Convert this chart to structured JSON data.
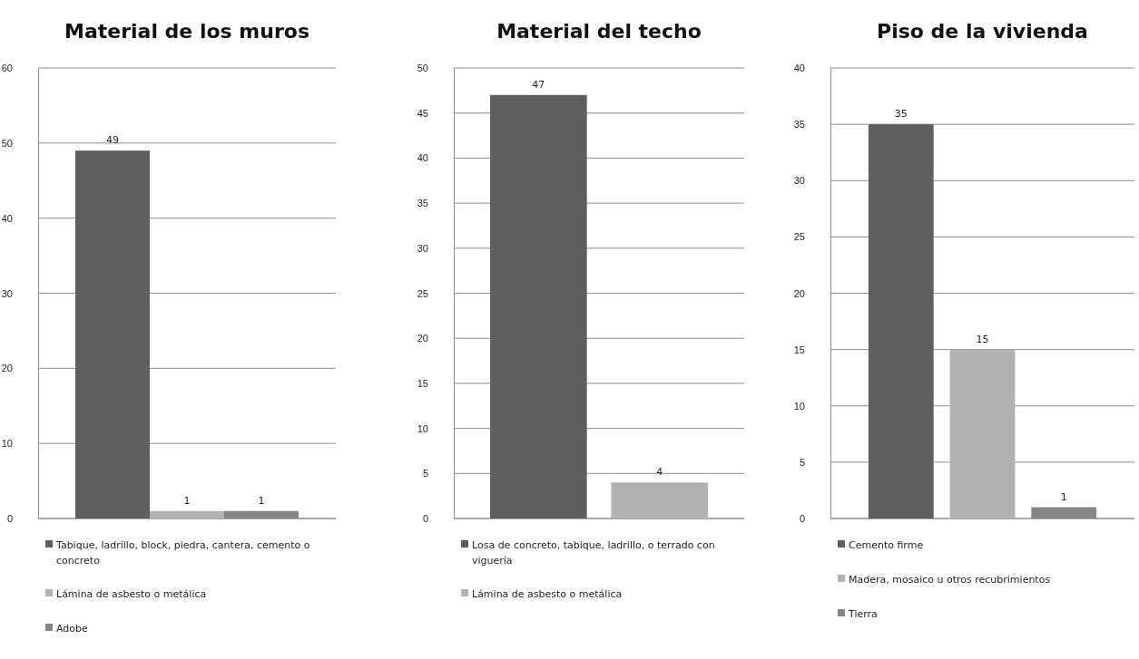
{
  "chart_data": [
    {
      "type": "bar",
      "title": "Material de los muros",
      "categories": [
        null
      ],
      "series": [
        {
          "name": "Tabique, ladrillo, block, piedra, cantera, cemento o concreto",
          "color": "#5f5f5f",
          "values": [
            49
          ]
        },
        {
          "name": "Lámina de asbesto o metálica",
          "color": "#b2b2b2",
          "values": [
            1
          ]
        },
        {
          "name": "Adobe",
          "color": "#858585",
          "values": [
            1
          ]
        }
      ],
      "ylim": [
        0,
        60
      ],
      "yticks": [
        0,
        10,
        20,
        30,
        40,
        50,
        60
      ],
      "grid": "y",
      "legend": "bottom",
      "data_labels": true
    },
    {
      "type": "bar",
      "title": "Material del techo",
      "categories": [
        null
      ],
      "series": [
        {
          "name": "Losa de concreto,  tabique, ladrillo, o terrado con viguería",
          "color": "#5f5f5f",
          "values": [
            47
          ]
        },
        {
          "name": "Lámina de asbesto o metálica",
          "color": "#b2b2b2",
          "values": [
            4
          ]
        }
      ],
      "ylim": [
        0,
        50
      ],
      "yticks": [
        0,
        5,
        10,
        15,
        20,
        25,
        30,
        35,
        40,
        45,
        50
      ],
      "grid": "y",
      "legend": "bottom",
      "data_labels": true
    },
    {
      "type": "bar",
      "title": "Piso de la vivienda",
      "categories": [
        null
      ],
      "series": [
        {
          "name": "Cemento firme",
          "color": "#5f5f5f",
          "values": [
            35
          ]
        },
        {
          "name": "Madera, mosaico u otros recubrimientos",
          "color": "#b2b2b2",
          "values": [
            15
          ]
        },
        {
          "name": "Tierra",
          "color": "#858585",
          "values": [
            1
          ]
        }
      ],
      "ylim": [
        0,
        40
      ],
      "yticks": [
        0,
        5,
        10,
        15,
        20,
        25,
        30,
        35,
        40
      ],
      "grid": "y",
      "legend": "bottom",
      "data_labels": true
    }
  ]
}
